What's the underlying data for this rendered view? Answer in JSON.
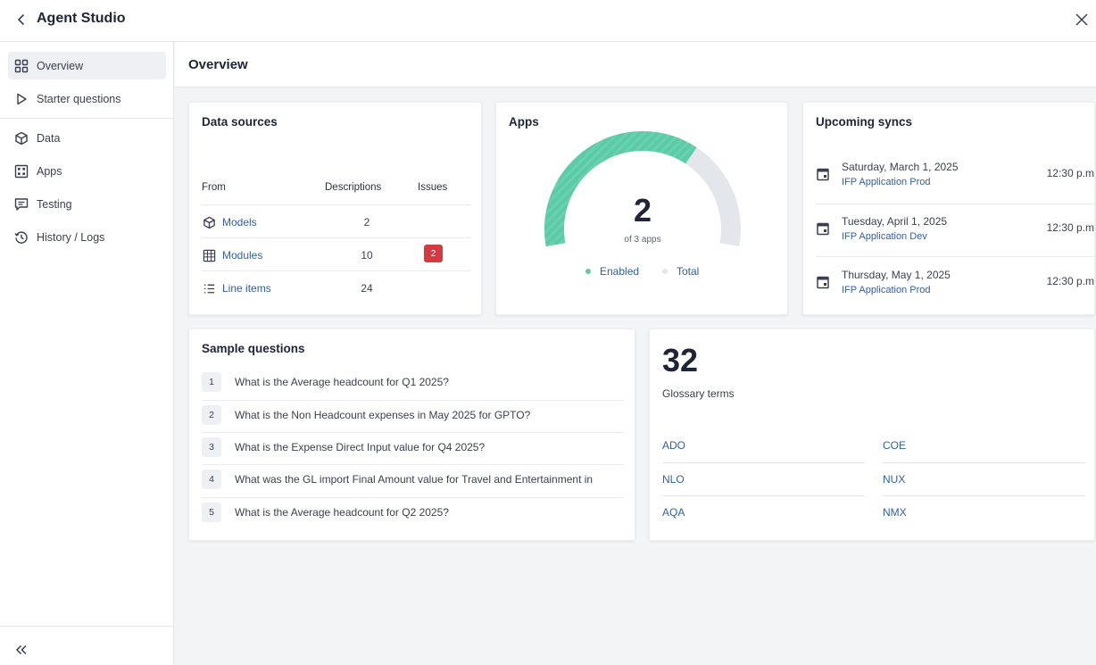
{
  "app": {
    "title": "Agent Studio"
  },
  "sidebar": {
    "items": [
      {
        "label": "Overview",
        "icon": "grid-icon",
        "active": true
      },
      {
        "label": "Starter questions",
        "icon": "play-icon"
      },
      {
        "label": "Data",
        "icon": "cube-icon"
      },
      {
        "label": "Apps",
        "icon": "apps-grid-icon"
      },
      {
        "label": "Testing",
        "icon": "message-icon"
      },
      {
        "label": "History / Logs",
        "icon": "history-icon"
      }
    ],
    "collapse_icon": "double-chevron-left-icon"
  },
  "page": {
    "title": "Overview"
  },
  "data_sources": {
    "title": "Data sources",
    "columns": {
      "from": "From",
      "descriptions": "Descriptions",
      "issues": "Issues"
    },
    "rows": [
      {
        "name": "Models",
        "icon": "cube-icon",
        "descriptions": "2",
        "issues": ""
      },
      {
        "name": "Modules",
        "icon": "table-icon",
        "descriptions": "10",
        "issues": "2"
      },
      {
        "name": "Line items",
        "icon": "list-icon",
        "descriptions": "24",
        "issues": ""
      }
    ]
  },
  "apps": {
    "title": "Apps",
    "count": "2",
    "subtitle": "of 3 apps",
    "enabled": 2,
    "total": 3,
    "legend": {
      "enabled": "Enabled",
      "total": "Total"
    },
    "colors": {
      "enabled": "#5ccaa6",
      "total": "#e3e6ea"
    }
  },
  "upcoming_syncs": {
    "title": "Upcoming syncs",
    "items": [
      {
        "date": "Saturday, March 1, 2025",
        "app": "IFP Application Prod",
        "time": "12:30 p.m"
      },
      {
        "date": "Tuesday, April 1, 2025",
        "app": "IFP Application Dev",
        "time": "12:30 p.m"
      },
      {
        "date": "Thursday, May 1, 2025",
        "app": "IFP Application Prod",
        "time": "12:30 p.m"
      }
    ]
  },
  "sample_questions": {
    "title": "Sample questions",
    "items": [
      {
        "num": "1",
        "text": "What is the Average headcount for Q1 2025?"
      },
      {
        "num": "2",
        "text": "What is the Non Headcount expenses in May 2025 for GPTO?"
      },
      {
        "num": "3",
        "text": "What is the Expense Direct Input value for Q4 2025?"
      },
      {
        "num": "4",
        "text": "What was the GL import Final Amount value for Travel and Entertainment in"
      },
      {
        "num": "5",
        "text": "What is the Average headcount for Q2 2025?"
      }
    ]
  },
  "glossary": {
    "count": "32",
    "label": "Glossary terms",
    "terms": [
      "ADO",
      "COE",
      "NLO",
      "NUX",
      "AQA",
      "NMX"
    ]
  },
  "colors": {
    "accent_link": "#2f5fa8",
    "issue_badge": "#d33a41",
    "enabled_teal": "#5ccaa6"
  }
}
